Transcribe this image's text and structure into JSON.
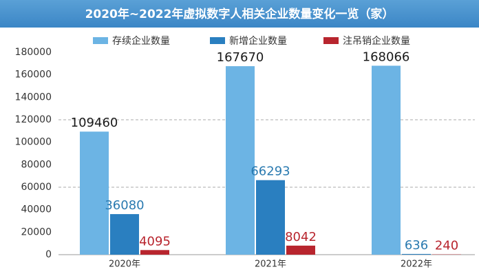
{
  "chart_data": {
    "type": "bar",
    "title": "2020年~2022年虚拟数字人相关企业数量变化一览（家）",
    "categories": [
      "2020年",
      "2021年",
      "2022年"
    ],
    "series": [
      {
        "name": "存续企业数量",
        "color": "#6cb4e4",
        "label_color": "#1a1a1a",
        "values": [
          109460,
          167670,
          168066
        ]
      },
      {
        "name": "新增企业数量",
        "color": "#2a7fc0",
        "label_color": "#2a7ab0",
        "values": [
          36080,
          66293,
          636
        ]
      },
      {
        "name": "注吊销企业数量",
        "color": "#b8252e",
        "label_color": "#b8252e",
        "values": [
          4095,
          8042,
          240
        ]
      }
    ],
    "ylim": [
      0,
      180000
    ],
    "yticks": [
      0,
      20000,
      40000,
      60000,
      80000,
      100000,
      120000,
      140000,
      160000,
      180000
    ],
    "grid_lines": [
      60000,
      120000
    ]
  }
}
